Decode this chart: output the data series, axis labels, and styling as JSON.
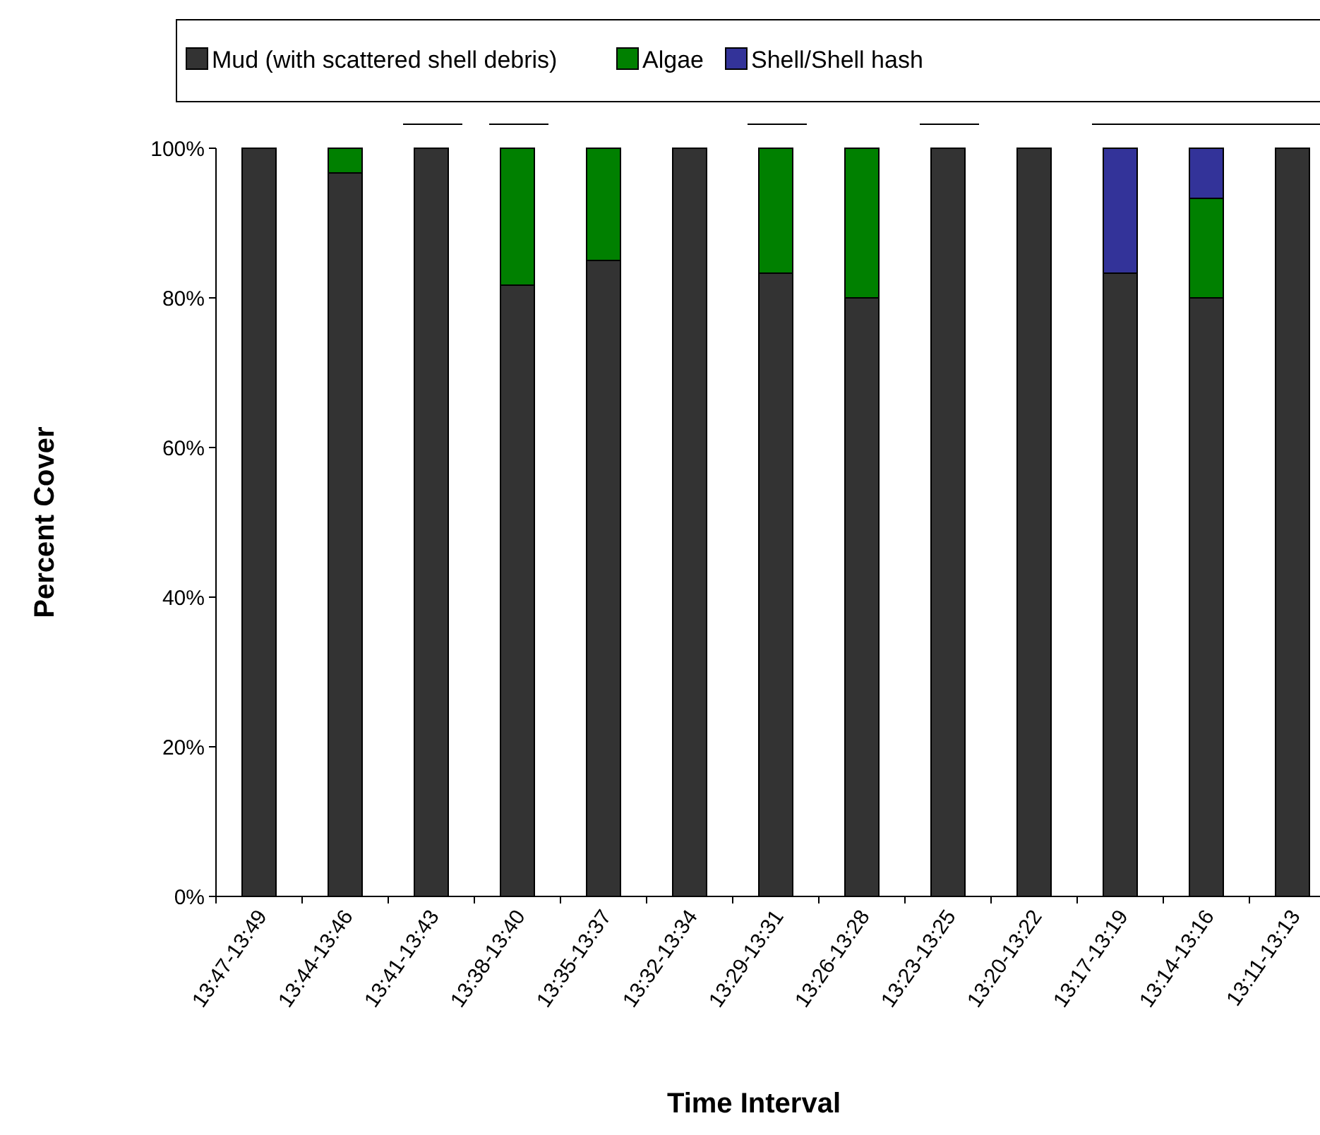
{
  "chart_data": {
    "type": "bar",
    "stacked": true,
    "xlabel": "Time Interval",
    "ylabel": "Percent Cover",
    "categories": [
      "13:47-13:49",
      "13:44-13:46",
      "13:41-13:43",
      "13:38-13:40",
      "13:35-13:37",
      "13:32-13:34",
      "13:29-13:31",
      "13:26-13:28",
      "13:23-13:25",
      "13:20-13:22",
      "13:17-13:19",
      "13:14-13:16",
      "13:11-13:13"
    ],
    "series": [
      {
        "name": "Mud (with scattered shell debris)",
        "color": "#333333",
        "values": [
          100,
          96.7,
          100,
          81.7,
          85,
          100,
          83.3,
          80,
          100,
          100,
          83.3,
          80,
          100
        ]
      },
      {
        "name": "Algae",
        "color": "#008000",
        "values": [
          0,
          3.3,
          0,
          18.3,
          15,
          0,
          16.7,
          20,
          0,
          0,
          0,
          13.3,
          0
        ]
      },
      {
        "name": "Shell/Shell hash",
        "color": "#333399",
        "values": [
          0,
          0,
          0,
          0,
          0,
          0,
          0,
          0,
          0,
          0,
          16.7,
          6.7,
          0
        ]
      }
    ],
    "ylim": [
      0,
      100
    ],
    "yticks": [
      {
        "value": 0,
        "label": "0%"
      },
      {
        "value": 20,
        "label": "20%"
      },
      {
        "value": 40,
        "label": "40%"
      },
      {
        "value": 60,
        "label": "60%"
      },
      {
        "value": 80,
        "label": "80%"
      },
      {
        "value": 100,
        "label": "100%"
      }
    ],
    "grid": false,
    "legend": "top"
  }
}
